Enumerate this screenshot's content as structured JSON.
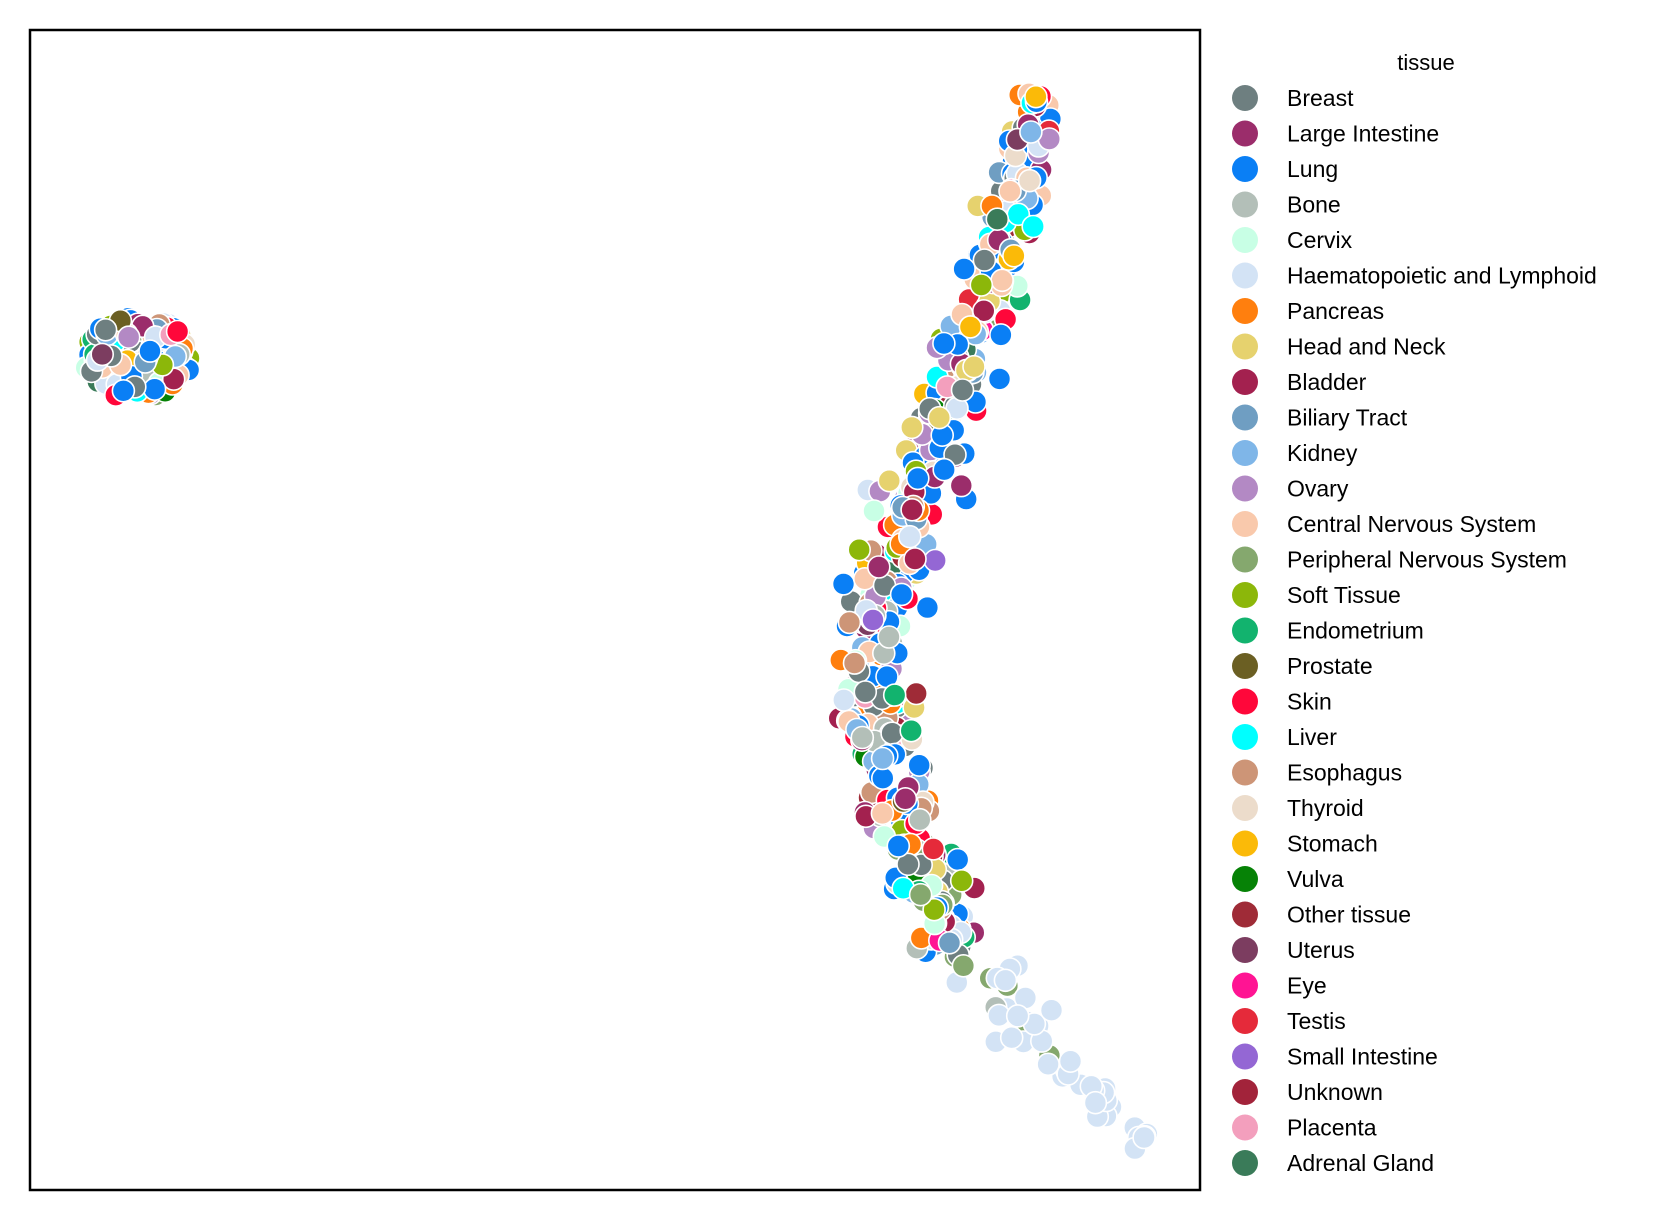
{
  "chart_data": {
    "type": "scatter",
    "title": "",
    "xlabel": "",
    "ylabel": "",
    "axes_visible": false,
    "grid": false,
    "xlim": [
      0,
      100
    ],
    "ylim": [
      0,
      100
    ],
    "legend": {
      "title": "tissue",
      "placement": "outside-right"
    },
    "series": [
      {
        "name": "Breast",
        "color": "#6e7f80",
        "count": 55
      },
      {
        "name": "Large Intestine",
        "color": "#9b2d6b",
        "count": 36
      },
      {
        "name": "Lung",
        "color": "#0a7ff5",
        "count": 120
      },
      {
        "name": "Bone",
        "color": "#b3bfb8",
        "count": 30
      },
      {
        "name": "Cervix",
        "color": "#c8ffe5",
        "count": 18
      },
      {
        "name": "Haematopoietic and Lymphoid",
        "color": "#d3e3f5",
        "count": 70
      },
      {
        "name": "Pancreas",
        "color": "#ff7f0e",
        "count": 22
      },
      {
        "name": "Head and Neck",
        "color": "#e6d26e",
        "count": 28
      },
      {
        "name": "Bladder",
        "color": "#a3214f",
        "count": 14
      },
      {
        "name": "Biliary Tract",
        "color": "#6f9ec2",
        "count": 14
      },
      {
        "name": "Kidney",
        "color": "#7fb6e8",
        "count": 22
      },
      {
        "name": "Ovary",
        "color": "#b389c4",
        "count": 20
      },
      {
        "name": "Central Nervous System",
        "color": "#f9c9ac",
        "count": 40
      },
      {
        "name": "Peripheral Nervous System",
        "color": "#85a86e",
        "count": 25
      },
      {
        "name": "Soft Tissue",
        "color": "#8cb70a",
        "count": 28
      },
      {
        "name": "Endometrium",
        "color": "#12b36e",
        "count": 12
      },
      {
        "name": "Prostate",
        "color": "#6b5f23",
        "count": 6
      },
      {
        "name": "Skin",
        "color": "#ff073a",
        "count": 24
      },
      {
        "name": "Liver",
        "color": "#00ffff",
        "count": 16
      },
      {
        "name": "Esophagus",
        "color": "#cd9577",
        "count": 20
      },
      {
        "name": "Thyroid",
        "color": "#ecdccb",
        "count": 16
      },
      {
        "name": "Stomach",
        "color": "#fbba08",
        "count": 16
      },
      {
        "name": "Vulva",
        "color": "#068206",
        "count": 5
      },
      {
        "name": "Other tissue",
        "color": "#9f2b37",
        "count": 6
      },
      {
        "name": "Uterus",
        "color": "#7c3d60",
        "count": 6
      },
      {
        "name": "Eye",
        "color": "#ff1493",
        "count": 4
      },
      {
        "name": "Testis",
        "color": "#e52a3a",
        "count": 5
      },
      {
        "name": "Small Intestine",
        "color": "#9467d4",
        "count": 5
      },
      {
        "name": "Unknown",
        "color": "#a2233a",
        "count": 6
      },
      {
        "name": "Placenta",
        "color": "#f39fbd",
        "count": 4
      },
      {
        "name": "Adrenal Gland",
        "color": "#3a7b59",
        "count": 6
      }
    ],
    "clusters": [
      {
        "shape": "blob",
        "center": [
          9.2,
          71.8
        ],
        "spread": [
          4.6,
          3.6
        ],
        "share": 0.32
      },
      {
        "shape": "arc",
        "path": [
          [
            86.1,
            94.5
          ],
          [
            82.1,
            76.5
          ],
          [
            76.3,
            62.3
          ],
          [
            71.5,
            46.4
          ],
          [
            73.3,
            35.8
          ],
          [
            77.1,
            24.3
          ],
          [
            82.6,
            17.7
          ],
          [
            87.8,
            10.7
          ],
          [
            95.2,
            4.5
          ]
        ],
        "share": 0.68
      }
    ]
  }
}
